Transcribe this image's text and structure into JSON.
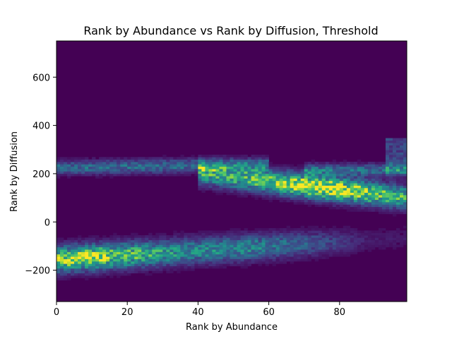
{
  "chart_data": {
    "type": "heatmap",
    "title": "Rank by Abundance vs Rank by Diffusion, Threshold",
    "xlabel": "Rank by Abundance",
    "ylabel": "Rank by Diffusion",
    "xlim": [
      0,
      99
    ],
    "ylim": [
      -330,
      750
    ],
    "x_ticks": [
      0,
      20,
      40,
      60,
      80
    ],
    "y_ticks": [
      -200,
      0,
      200,
      400,
      600
    ],
    "grid": false,
    "colormap": "viridis",
    "bins": {
      "x": 99,
      "y": 110
    },
    "density_bands": [
      {
        "name": "lower",
        "x": [
          0,
          99
        ],
        "center_at_x0": -155,
        "center_slope_per_rank": 0.9,
        "width": 50,
        "peak_x": 8,
        "peak_intensity": 0.85,
        "fades_after_x": 55
      },
      {
        "name": "upper",
        "x": [
          0,
          60
        ],
        "center_at_x0": 225,
        "center_slope_per_rank": 0.2,
        "width": 28,
        "peak_intensity": 0.35
      },
      {
        "name": "middle",
        "x": [
          40,
          99
        ],
        "center_at_x0": 270,
        "center_slope_per_rank": -1.7,
        "width": 45,
        "peak_x": 75,
        "peak_intensity": 1.0
      },
      {
        "name": "right-upper",
        "x": [
          70,
          99
        ],
        "center_at_x0": 215,
        "center_slope_per_rank": 0.0,
        "width": 25,
        "peak_intensity": 0.35
      },
      {
        "name": "right-edge",
        "x": [
          93,
          99
        ],
        "y": [
          200,
          350
        ],
        "peak_intensity": 0.25
      }
    ],
    "colors": {
      "background": "#440154",
      "mid": "#21918c",
      "high": "#fde725"
    }
  }
}
